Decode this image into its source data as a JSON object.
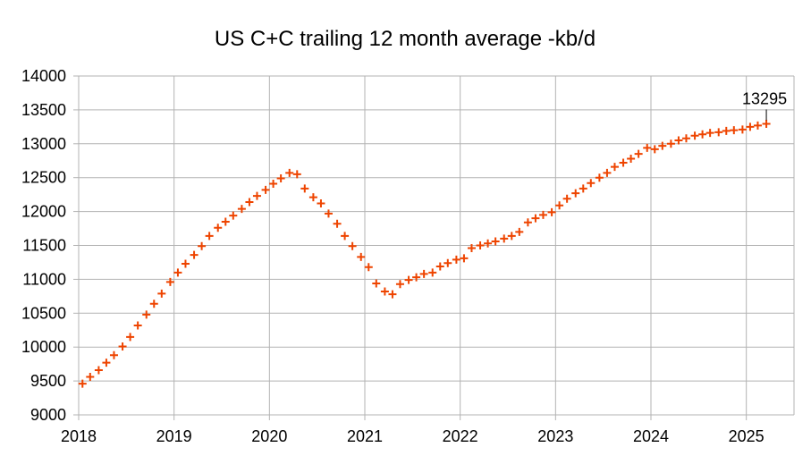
{
  "chart_data": {
    "type": "scatter",
    "title": "US C+C trailing 12 month average -kb/d",
    "xlabel": "",
    "ylabel": "",
    "xlim": [
      2018.0,
      2025.5
    ],
    "ylim": [
      9000,
      14000
    ],
    "x_ticks": [
      "2018",
      "2019",
      "2020",
      "2021",
      "2022",
      "2023",
      "2024",
      "2025"
    ],
    "y_ticks": [
      "14000",
      "13500",
      "13000",
      "12500",
      "12000",
      "11500",
      "11000",
      "10500",
      "10000",
      "9500",
      "9000"
    ],
    "grid": true,
    "legend": "none",
    "marker_color": "#ee4400",
    "marker": "plus",
    "annotation": {
      "text": "13295",
      "x": 2025.21,
      "y": 13295
    },
    "series": [
      {
        "x": [
          2018.04,
          2018.12,
          2018.21,
          2018.29,
          2018.37,
          2018.46,
          2018.54,
          2018.62,
          2018.71,
          2018.79,
          2018.87,
          2018.96,
          2019.04,
          2019.12,
          2019.21,
          2019.29,
          2019.37,
          2019.46,
          2019.54,
          2019.62,
          2019.71,
          2019.79,
          2019.87,
          2019.96,
          2020.04,
          2020.12,
          2020.21,
          2020.29,
          2020.37,
          2020.46,
          2020.54,
          2020.62,
          2020.71,
          2020.79,
          2020.87,
          2020.96,
          2021.04,
          2021.12,
          2021.21,
          2021.29,
          2021.37,
          2021.46,
          2021.54,
          2021.62,
          2021.71,
          2021.79,
          2021.87,
          2021.96,
          2022.04,
          2022.12,
          2022.21,
          2022.29,
          2022.37,
          2022.46,
          2022.54,
          2022.62,
          2022.71,
          2022.79,
          2022.87,
          2022.96,
          2023.04,
          2023.12,
          2023.21,
          2023.29,
          2023.37,
          2023.46,
          2023.54,
          2023.62,
          2023.71,
          2023.79,
          2023.87,
          2023.96,
          2024.04,
          2024.12,
          2024.21,
          2024.29,
          2024.37,
          2024.46,
          2024.54,
          2024.62,
          2024.71,
          2024.79,
          2024.87,
          2024.96,
          2025.04,
          2025.12,
          2025.21
        ],
        "y": [
          9460,
          9560,
          9660,
          9770,
          9880,
          10010,
          10150,
          10320,
          10480,
          10640,
          10790,
          10960,
          11100,
          11230,
          11360,
          11490,
          11640,
          11760,
          11850,
          11940,
          12040,
          12140,
          12230,
          12320,
          12410,
          12490,
          12570,
          12550,
          12340,
          12210,
          12120,
          11970,
          11820,
          11640,
          11490,
          11330,
          11180,
          10940,
          10820,
          10780,
          10930,
          10990,
          11030,
          11080,
          11100,
          11190,
          11240,
          11290,
          11310,
          11460,
          11500,
          11530,
          11560,
          11600,
          11640,
          11700,
          11840,
          11900,
          11950,
          11990,
          12090,
          12190,
          12270,
          12340,
          12420,
          12500,
          12570,
          12660,
          12720,
          12780,
          12850,
          12940,
          12920,
          12970,
          13000,
          13050,
          13080,
          13120,
          13140,
          13160,
          13170,
          13190,
          13200,
          13210,
          13250,
          13270,
          13295
        ]
      }
    ]
  }
}
